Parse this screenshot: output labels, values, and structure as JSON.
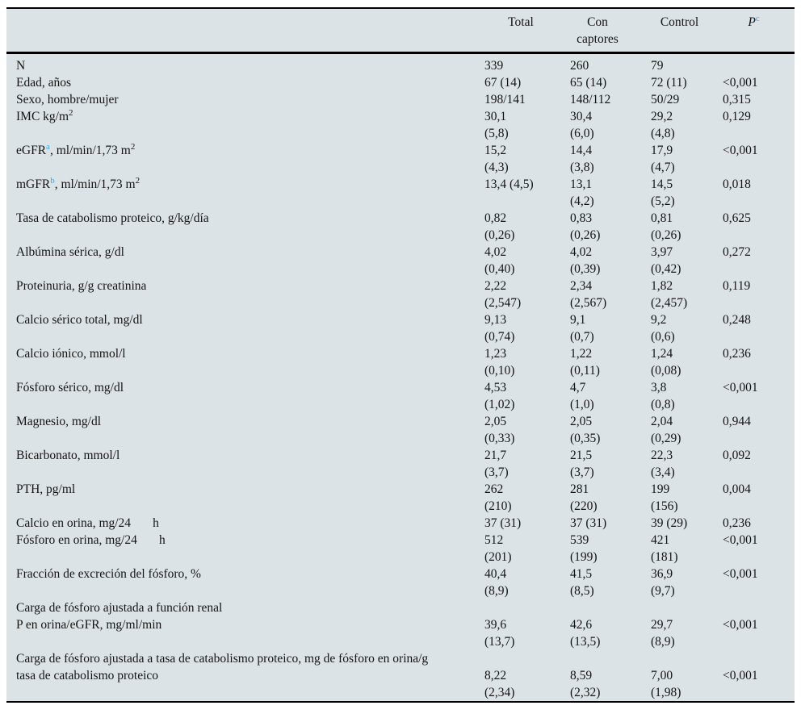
{
  "table": {
    "background_color": "#dce3e7",
    "accent_blue": "#4aa5d8",
    "rule_color": "#000000",
    "header": {
      "row_label_column": "",
      "columns": [
        {
          "name": "total",
          "parts": [
            {
              "t": "Total"
            }
          ]
        },
        {
          "name": "con-captores",
          "parts": [
            {
              "t": "Con\ncaptores"
            }
          ]
        },
        {
          "name": "control",
          "parts": [
            {
              "t": "Control"
            }
          ]
        },
        {
          "name": "p",
          "parts": [
            {
              "t": "P",
              "italic": true
            },
            {
              "t": "c",
              "sup": true,
              "blue": true
            }
          ]
        }
      ]
    },
    "rows": [
      {
        "label": [
          {
            "t": "N"
          }
        ],
        "values": {
          "total": "339",
          "con_captores": "260",
          "control": "79",
          "p": ""
        }
      },
      {
        "label": [
          {
            "t": "Edad, años"
          }
        ],
        "values": {
          "total": "67 (14)",
          "con_captores": "65 (14)",
          "control": "72 (11)",
          "p": "<0,001"
        }
      },
      {
        "label": [
          {
            "t": "Sexo, hombre/mujer"
          }
        ],
        "values": {
          "total": "198/141",
          "con_captores": "148/112",
          "control": "50/29",
          "p": "0,315"
        }
      },
      {
        "label": [
          {
            "t": "IMC kg/m"
          },
          {
            "t": "2",
            "sup": true
          }
        ],
        "values": {
          "total": "30,1\n(5,8)",
          "con_captores": "30,4\n(6,0)",
          "control": "29,2\n(4,8)",
          "p": "0,129"
        }
      },
      {
        "label": [
          {
            "t": "eGFR"
          },
          {
            "t": "a",
            "sup": true,
            "blue": true
          },
          {
            "t": ", ml/min/1,73 m"
          },
          {
            "t": "2",
            "sup": true
          }
        ],
        "values": {
          "total": "15,2\n(4,3)",
          "con_captores": "14,4\n(3,8)",
          "control": "17,9\n(4,7)",
          "p": "<0,001"
        }
      },
      {
        "label": [
          {
            "t": "mGFR"
          },
          {
            "t": "b",
            "sup": true,
            "blue": true
          },
          {
            "t": ", ml/min/1,73 m"
          },
          {
            "t": "2",
            "sup": true
          }
        ],
        "values": {
          "total": "13,4 (4,5)",
          "con_captores": "13,1\n(4,2)",
          "control": "14,5\n(5,2)",
          "p": "0,018"
        }
      },
      {
        "label": [
          {
            "t": "Tasa de catabolismo proteico, g/kg/día"
          }
        ],
        "values": {
          "total": "0,82\n(0,26)",
          "con_captores": "0,83\n(0,26)",
          "control": "0,81\n(0,26)",
          "p": "0,625"
        }
      },
      {
        "label": [
          {
            "t": "Albúmina sérica, g/dl"
          }
        ],
        "values": {
          "total": "4,02\n(0,40)",
          "con_captores": "4,02\n(0,39)",
          "control": "3,97\n(0,42)",
          "p": "0,272"
        }
      },
      {
        "label": [
          {
            "t": "Proteinuria, g/g creatinina"
          }
        ],
        "values": {
          "total": "2,22\n(2,547)",
          "con_captores": "2,34\n(2,567)",
          "control": "1,82\n(2,457)",
          "p": "0,119"
        }
      },
      {
        "label": [
          {
            "t": "Calcio sérico total, mg/dl"
          }
        ],
        "values": {
          "total": "9,13\n(0,74)",
          "con_captores": "9,1\n(0,7)",
          "control": "9,2\n(0,6)",
          "p": "0,248"
        }
      },
      {
        "label": [
          {
            "t": "Calcio iónico, mmol/l"
          }
        ],
        "values": {
          "total": "1,23\n(0,10)",
          "con_captores": "1,22\n(0,11)",
          "control": "1,24\n(0,08)",
          "p": "0,236"
        }
      },
      {
        "label": [
          {
            "t": "Fósforo sérico, mg/dl"
          }
        ],
        "values": {
          "total": "4,53\n(1,02)",
          "con_captores": "4,7\n(1,0)",
          "control": "3,8\n(0,8)",
          "p": "<0,001"
        }
      },
      {
        "label": [
          {
            "t": "Magnesio, mg/dl"
          }
        ],
        "values": {
          "total": "2,05\n(0,33)",
          "con_captores": "2,05\n(0,35)",
          "control": "2,04\n(0,29)",
          "p": "0,944"
        }
      },
      {
        "label": [
          {
            "t": "Bicarbonato, mmol/l"
          }
        ],
        "values": {
          "total": "21,7\n(3,7)",
          "con_captores": "21,5\n(3,7)",
          "control": "22,3\n(3,4)",
          "p": "0,092"
        }
      },
      {
        "label": [
          {
            "t": "PTH, pg/ml"
          }
        ],
        "values": {
          "total": "262\n(210)",
          "con_captores": "281\n(220)",
          "control": "199\n(156)",
          "p": "0,004"
        }
      },
      {
        "label": [
          {
            "t": "Calcio en orina, mg/24       h"
          }
        ],
        "values": {
          "total": "37 (31)",
          "con_captores": "37 (31)",
          "control": "39 (29)",
          "p": "0,236"
        }
      },
      {
        "label": [
          {
            "t": "Fósforo en orina, mg/24       h"
          }
        ],
        "values": {
          "total": "512\n(201)",
          "con_captores": "539\n(199)",
          "control": "421\n(181)",
          "p": "<0,001"
        }
      },
      {
        "label": [
          {
            "t": "Fracción de excreción del fósforo, %"
          }
        ],
        "values": {
          "total": "40,4\n(8,9)",
          "con_captores": "41,5\n(8,5)",
          "control": "36,9\n(9,7)",
          "p": "<0,001"
        }
      },
      {
        "label": [
          {
            "t": "Carga de fósforo ajustada a función renal"
          }
        ],
        "values": {
          "total": "",
          "con_captores": "",
          "control": "",
          "p": ""
        }
      },
      {
        "label": [
          {
            "t": "P en orina/eGFR, mg/ml/min"
          }
        ],
        "values": {
          "total": "39,6\n(13,7)",
          "con_captores": "42,6\n(13,5)",
          "control": "29,7\n(8,9)",
          "p": "<0,001"
        }
      },
      {
        "label": [
          {
            "t": "Carga de fósforo ajustada a tasa de catabolismo proteico, mg de fósforo en orina/g\ntasa de catabolismo proteico"
          }
        ],
        "values": {
          "total": "\n8,22\n(2,34)",
          "con_captores": "\n8,59\n(2,32)",
          "control": "\n7,00\n(1,98)",
          "p": "\n<0,001"
        }
      }
    ]
  }
}
